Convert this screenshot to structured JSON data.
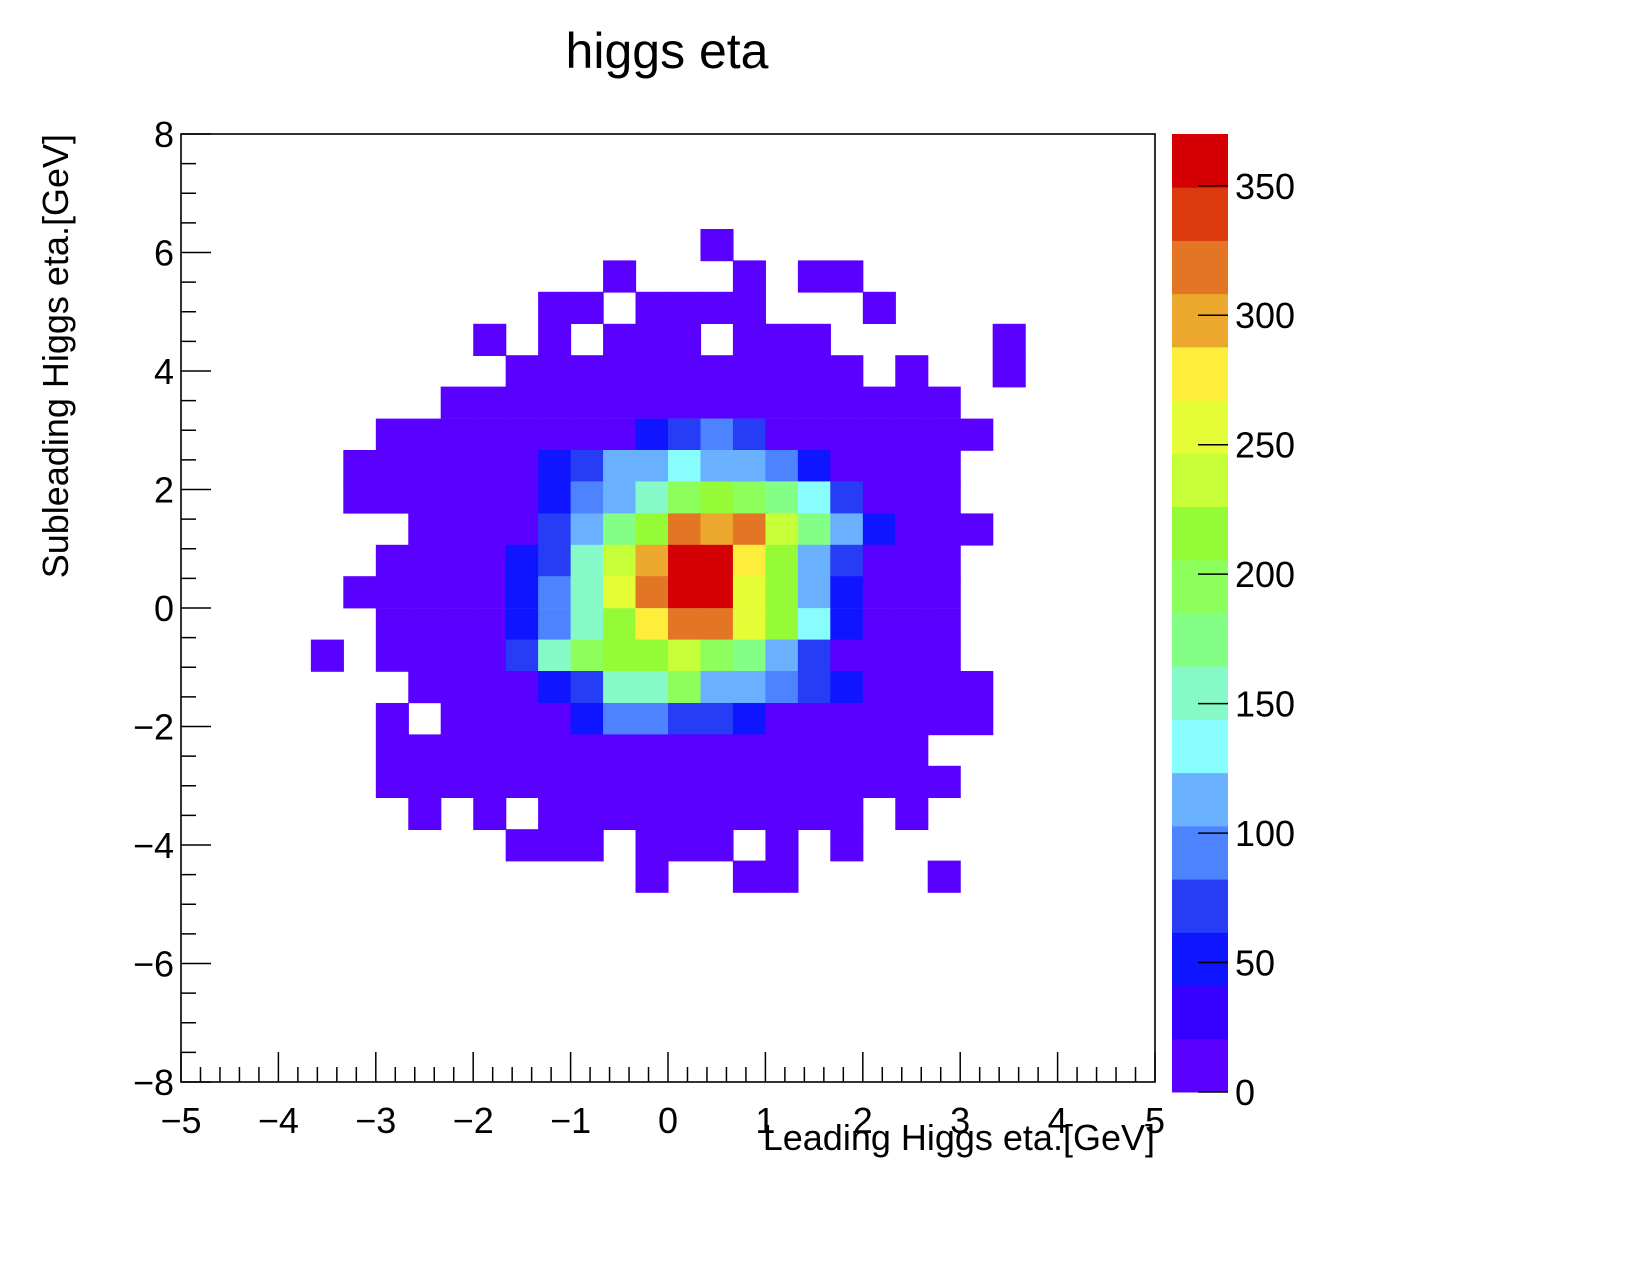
{
  "chart_data": {
    "type": "heatmap",
    "title": "higgs eta",
    "xlabel": "Leading Higgs eta.[GeV]",
    "ylabel": "Subleading Higgs eta.[GeV]",
    "xlim": [
      -5,
      5
    ],
    "ylim": [
      -8,
      8
    ],
    "x_ticks": [
      "−5",
      "−4",
      "−3",
      "−2",
      "−1",
      "0",
      "1",
      "2",
      "3",
      "4",
      "5"
    ],
    "y_ticks": [
      "−8",
      "−6",
      "−4",
      "−2",
      "0",
      "2",
      "4",
      "6",
      "8"
    ],
    "colorbar": {
      "range": [
        0,
        370
      ],
      "tick_values": [
        0,
        50,
        100,
        150,
        200,
        250,
        300,
        350
      ],
      "tick_labels": [
        "0",
        "50",
        "100",
        "150",
        "200",
        "250",
        "300",
        "350"
      ],
      "palette": [
        "#5a00ff",
        "#3500ff",
        "#0f16ff",
        "#263df5",
        "#4d83ff",
        "#69b0ff",
        "#88fdfe",
        "#85fac8",
        "#84ff85",
        "#8cff5c",
        "#95fb36",
        "#c6ff38",
        "#e5fd36",
        "#fdee3b",
        "#eca72d",
        "#e37625",
        "#dc3a0e",
        "#d50004"
      ]
    },
    "grid": false,
    "legend": "colorbar-right",
    "bins": {
      "x_edges_start": -5,
      "x_bin_width": 0.333333,
      "y_edges_start": -8,
      "y_bin_width": 0.533333,
      "note_cells": "[x_center, y_center, count]"
    },
    "cells": [
      [
        0.5,
        6.13,
        5
      ],
      [
        -0.5,
        5.6,
        5
      ],
      [
        0.833,
        5.6,
        5
      ],
      [
        1.5,
        5.6,
        5
      ],
      [
        1.833,
        5.6,
        5
      ],
      [
        -1.167,
        5.07,
        5
      ],
      [
        -0.833,
        5.07,
        5
      ],
      [
        -0.167,
        5.07,
        5
      ],
      [
        0.167,
        5.07,
        5
      ],
      [
        0.5,
        5.07,
        5
      ],
      [
        0.833,
        5.07,
        5
      ],
      [
        2.167,
        5.07,
        5
      ],
      [
        -1.833,
        4.53,
        5
      ],
      [
        -1.167,
        4.53,
        5
      ],
      [
        -0.5,
        4.53,
        5
      ],
      [
        -0.167,
        4.53,
        5
      ],
      [
        0.167,
        4.53,
        5
      ],
      [
        0.833,
        4.53,
        5
      ],
      [
        1.167,
        4.53,
        5
      ],
      [
        1.5,
        4.53,
        5
      ],
      [
        3.5,
        4.53,
        5
      ],
      [
        -1.5,
        4.0,
        5
      ],
      [
        -1.167,
        4.0,
        5
      ],
      [
        -0.833,
        4.0,
        5
      ],
      [
        -0.5,
        4.0,
        5
      ],
      [
        -0.167,
        4.0,
        5
      ],
      [
        0.167,
        4.0,
        5
      ],
      [
        0.5,
        4.0,
        5
      ],
      [
        0.833,
        4.0,
        5
      ],
      [
        1.167,
        4.0,
        5
      ],
      [
        1.5,
        4.0,
        5
      ],
      [
        1.833,
        4.0,
        5
      ],
      [
        2.5,
        4.0,
        5
      ],
      [
        3.5,
        4.0,
        5
      ],
      [
        -2.167,
        3.47,
        5
      ],
      [
        -1.833,
        3.47,
        5
      ],
      [
        -1.5,
        3.47,
        5
      ],
      [
        -1.167,
        3.47,
        20
      ],
      [
        -0.833,
        3.47,
        5
      ],
      [
        -0.5,
        3.47,
        20
      ],
      [
        -0.167,
        3.47,
        20
      ],
      [
        0.167,
        3.47,
        20
      ],
      [
        0.5,
        3.47,
        20
      ],
      [
        0.833,
        3.47,
        20
      ],
      [
        1.167,
        3.47,
        20
      ],
      [
        1.5,
        3.47,
        5
      ],
      [
        1.833,
        3.47,
        5
      ],
      [
        2.167,
        3.47,
        5
      ],
      [
        2.5,
        3.47,
        5
      ],
      [
        2.833,
        3.47,
        5
      ],
      [
        -2.833,
        2.93,
        5
      ],
      [
        -2.5,
        2.93,
        5
      ],
      [
        -2.167,
        2.93,
        5
      ],
      [
        -1.833,
        2.93,
        5
      ],
      [
        -1.5,
        2.93,
        5
      ],
      [
        -1.167,
        2.93,
        20
      ],
      [
        -0.833,
        2.93,
        20
      ],
      [
        -0.5,
        2.93,
        20
      ],
      [
        -0.167,
        2.93,
        45
      ],
      [
        0.167,
        2.93,
        70
      ],
      [
        0.5,
        2.93,
        90
      ],
      [
        0.833,
        2.93,
        70
      ],
      [
        1.167,
        2.93,
        20
      ],
      [
        1.5,
        2.93,
        20
      ],
      [
        1.833,
        2.93,
        20
      ],
      [
        2.167,
        2.93,
        5
      ],
      [
        2.5,
        2.93,
        5
      ],
      [
        2.833,
        2.93,
        5
      ],
      [
        3.167,
        2.93,
        5
      ],
      [
        -3.167,
        2.4,
        5
      ],
      [
        -2.833,
        2.4,
        5
      ],
      [
        -2.5,
        2.4,
        5
      ],
      [
        -2.167,
        2.4,
        5
      ],
      [
        -1.833,
        2.4,
        5
      ],
      [
        -1.5,
        2.4,
        20
      ],
      [
        -1.167,
        2.4,
        45
      ],
      [
        -0.833,
        2.4,
        70
      ],
      [
        -0.5,
        2.4,
        120
      ],
      [
        -0.167,
        2.4,
        120
      ],
      [
        0.167,
        2.4,
        140
      ],
      [
        0.5,
        2.4,
        120
      ],
      [
        0.833,
        2.4,
        110
      ],
      [
        1.167,
        2.4,
        90
      ],
      [
        1.5,
        2.4,
        45
      ],
      [
        1.833,
        2.4,
        20
      ],
      [
        2.167,
        2.4,
        5
      ],
      [
        2.5,
        2.4,
        5
      ],
      [
        2.833,
        2.4,
        5
      ],
      [
        -3.167,
        1.87,
        5
      ],
      [
        -2.833,
        1.87,
        5
      ],
      [
        -2.5,
        1.87,
        5
      ],
      [
        -2.167,
        1.87,
        5
      ],
      [
        -1.833,
        1.87,
        5
      ],
      [
        -1.5,
        1.87,
        20
      ],
      [
        -1.167,
        1.87,
        45
      ],
      [
        -0.833,
        1.87,
        90
      ],
      [
        -0.5,
        1.87,
        120
      ],
      [
        -0.167,
        1.87,
        160
      ],
      [
        0.167,
        1.87,
        200
      ],
      [
        0.5,
        1.87,
        210
      ],
      [
        0.833,
        1.87,
        200
      ],
      [
        1.167,
        1.87,
        170
      ],
      [
        1.5,
        1.87,
        140
      ],
      [
        1.833,
        1.87,
        70
      ],
      [
        2.167,
        1.87,
        20
      ],
      [
        2.5,
        1.87,
        20
      ],
      [
        2.833,
        1.87,
        5
      ],
      [
        -2.5,
        1.33,
        5
      ],
      [
        -2.167,
        1.33,
        5
      ],
      [
        -1.833,
        1.33,
        5
      ],
      [
        -1.5,
        1.33,
        20
      ],
      [
        -1.167,
        1.33,
        70
      ],
      [
        -0.833,
        1.33,
        120
      ],
      [
        -0.5,
        1.33,
        170
      ],
      [
        -0.167,
        1.33,
        210
      ],
      [
        0.167,
        1.33,
        310
      ],
      [
        0.5,
        1.33,
        300
      ],
      [
        0.833,
        1.33,
        310
      ],
      [
        1.167,
        1.33,
        240
      ],
      [
        1.5,
        1.33,
        170
      ],
      [
        1.833,
        1.33,
        110
      ],
      [
        2.167,
        1.33,
        45
      ],
      [
        2.5,
        1.33,
        5
      ],
      [
        2.833,
        1.33,
        5
      ],
      [
        3.167,
        1.33,
        5
      ],
      [
        -2.833,
        0.8,
        5
      ],
      [
        -2.5,
        0.8,
        5
      ],
      [
        -2.167,
        0.8,
        5
      ],
      [
        -1.833,
        0.8,
        5
      ],
      [
        -1.5,
        0.8,
        45
      ],
      [
        -1.167,
        0.8,
        70
      ],
      [
        -0.833,
        0.8,
        160
      ],
      [
        -0.5,
        0.8,
        240
      ],
      [
        -0.167,
        0.8,
        300
      ],
      [
        0.167,
        0.8,
        370
      ],
      [
        0.5,
        0.8,
        370
      ],
      [
        0.833,
        0.8,
        280
      ],
      [
        1.167,
        0.8,
        210
      ],
      [
        1.5,
        0.8,
        110
      ],
      [
        1.833,
        0.8,
        70
      ],
      [
        2.167,
        0.8,
        5
      ],
      [
        2.5,
        0.8,
        5
      ],
      [
        2.833,
        0.8,
        5
      ],
      [
        -3.167,
        0.27,
        5
      ],
      [
        -2.833,
        0.27,
        5
      ],
      [
        -2.5,
        0.27,
        5
      ],
      [
        -2.167,
        0.27,
        5
      ],
      [
        -1.833,
        0.27,
        5
      ],
      [
        -1.5,
        0.27,
        45
      ],
      [
        -1.167,
        0.27,
        90
      ],
      [
        -0.833,
        0.27,
        160
      ],
      [
        -0.5,
        0.27,
        260
      ],
      [
        -0.167,
        0.27,
        320
      ],
      [
        0.167,
        0.27,
        370
      ],
      [
        0.5,
        0.27,
        350
      ],
      [
        0.833,
        0.27,
        260
      ],
      [
        1.167,
        0.27,
        210
      ],
      [
        1.5,
        0.27,
        120
      ],
      [
        1.833,
        0.27,
        45
      ],
      [
        2.167,
        0.27,
        5
      ],
      [
        2.5,
        0.27,
        5
      ],
      [
        2.833,
        0.27,
        5
      ],
      [
        -2.833,
        -0.27,
        5
      ],
      [
        -2.5,
        -0.27,
        5
      ],
      [
        -2.167,
        -0.27,
        5
      ],
      [
        -1.833,
        -0.27,
        5
      ],
      [
        -1.5,
        -0.27,
        45
      ],
      [
        -1.167,
        -0.27,
        90
      ],
      [
        -0.833,
        -0.27,
        160
      ],
      [
        -0.5,
        -0.27,
        210
      ],
      [
        -0.167,
        -0.27,
        280
      ],
      [
        0.167,
        -0.27,
        310
      ],
      [
        0.5,
        -0.27,
        310
      ],
      [
        0.833,
        -0.27,
        260
      ],
      [
        1.167,
        -0.27,
        210
      ],
      [
        1.5,
        -0.27,
        140
      ],
      [
        1.833,
        -0.27,
        45
      ],
      [
        2.167,
        -0.27,
        20
      ],
      [
        2.5,
        -0.27,
        5
      ],
      [
        2.833,
        -0.27,
        5
      ],
      [
        -3.5,
        -0.8,
        5
      ],
      [
        -2.833,
        -0.8,
        5
      ],
      [
        -2.5,
        -0.8,
        5
      ],
      [
        -2.167,
        -0.8,
        5
      ],
      [
        -1.833,
        -0.8,
        5
      ],
      [
        -1.5,
        -0.8,
        70
      ],
      [
        -1.167,
        -0.8,
        150
      ],
      [
        -0.833,
        -0.8,
        200
      ],
      [
        -0.5,
        -0.8,
        210
      ],
      [
        -0.167,
        -0.8,
        220
      ],
      [
        0.167,
        -0.8,
        230
      ],
      [
        0.5,
        -0.8,
        200
      ],
      [
        0.833,
        -0.8,
        170
      ],
      [
        1.167,
        -0.8,
        120
      ],
      [
        1.5,
        -0.8,
        70
      ],
      [
        1.833,
        -0.8,
        20
      ],
      [
        2.167,
        -0.8,
        20
      ],
      [
        2.5,
        -0.8,
        5
      ],
      [
        2.833,
        -0.8,
        5
      ],
      [
        -2.5,
        -1.33,
        5
      ],
      [
        -2.167,
        -1.33,
        5
      ],
      [
        -1.833,
        -1.33,
        5
      ],
      [
        -1.5,
        -1.33,
        20
      ],
      [
        -1.167,
        -1.33,
        45
      ],
      [
        -0.833,
        -1.33,
        70
      ],
      [
        -0.5,
        -1.33,
        150
      ],
      [
        -0.167,
        -1.33,
        160
      ],
      [
        0.167,
        -1.33,
        190
      ],
      [
        0.5,
        -1.33,
        120
      ],
      [
        0.833,
        -1.33,
        120
      ],
      [
        1.167,
        -1.33,
        90
      ],
      [
        1.5,
        -1.33,
        70
      ],
      [
        1.833,
        -1.33,
        45
      ],
      [
        2.167,
        -1.33,
        20
      ],
      [
        2.5,
        -1.33,
        5
      ],
      [
        2.833,
        -1.33,
        5
      ],
      [
        3.167,
        -1.33,
        5
      ],
      [
        -2.833,
        -1.87,
        5
      ],
      [
        -2.167,
        -1.87,
        5
      ],
      [
        -1.833,
        -1.87,
        5
      ],
      [
        -1.5,
        -1.87,
        5
      ],
      [
        -1.167,
        -1.87,
        20
      ],
      [
        -0.833,
        -1.87,
        45
      ],
      [
        -0.5,
        -1.87,
        90
      ],
      [
        -0.167,
        -1.87,
        90
      ],
      [
        0.167,
        -1.87,
        70
      ],
      [
        0.5,
        -1.87,
        70
      ],
      [
        0.833,
        -1.87,
        45
      ],
      [
        1.167,
        -1.87,
        20
      ],
      [
        1.5,
        -1.87,
        20
      ],
      [
        1.833,
        -1.87,
        5
      ],
      [
        2.167,
        -1.87,
        5
      ],
      [
        2.5,
        -1.87,
        5
      ],
      [
        2.833,
        -1.87,
        5
      ],
      [
        3.167,
        -1.87,
        5
      ],
      [
        -2.833,
        -2.4,
        5
      ],
      [
        -2.5,
        -2.4,
        5
      ],
      [
        -2.167,
        -2.4,
        5
      ],
      [
        -1.833,
        -2.4,
        5
      ],
      [
        -1.5,
        -2.4,
        20
      ],
      [
        -1.167,
        -2.4,
        5
      ],
      [
        -0.833,
        -2.4,
        20
      ],
      [
        -0.5,
        -2.4,
        20
      ],
      [
        -0.167,
        -2.4,
        20
      ],
      [
        0.167,
        -2.4,
        20
      ],
      [
        0.5,
        -2.4,
        20
      ],
      [
        0.833,
        -2.4,
        20
      ],
      [
        1.167,
        -2.4,
        5
      ],
      [
        1.5,
        -2.4,
        5
      ],
      [
        1.833,
        -2.4,
        5
      ],
      [
        2.167,
        -2.4,
        5
      ],
      [
        2.5,
        -2.4,
        5
      ],
      [
        -2.833,
        -2.93,
        5
      ],
      [
        -2.5,
        -2.93,
        5
      ],
      [
        -2.167,
        -2.93,
        5
      ],
      [
        -1.833,
        -2.93,
        5
      ],
      [
        -1.5,
        -2.93,
        5
      ],
      [
        -1.167,
        -2.93,
        5
      ],
      [
        -0.833,
        -2.93,
        5
      ],
      [
        -0.5,
        -2.93,
        5
      ],
      [
        -0.167,
        -2.93,
        5
      ],
      [
        0.167,
        -2.93,
        5
      ],
      [
        0.5,
        -2.93,
        5
      ],
      [
        0.833,
        -2.93,
        5
      ],
      [
        1.167,
        -2.93,
        5
      ],
      [
        1.5,
        -2.93,
        5
      ],
      [
        1.833,
        -2.93,
        5
      ],
      [
        2.167,
        -2.93,
        5
      ],
      [
        2.5,
        -2.93,
        5
      ],
      [
        2.833,
        -2.93,
        5
      ],
      [
        -2.5,
        -3.47,
        5
      ],
      [
        -1.833,
        -3.47,
        5
      ],
      [
        -1.167,
        -3.47,
        5
      ],
      [
        -0.833,
        -3.47,
        5
      ],
      [
        -0.5,
        -3.47,
        5
      ],
      [
        -0.167,
        -3.47,
        5
      ],
      [
        0.167,
        -3.47,
        5
      ],
      [
        0.5,
        -3.47,
        5
      ],
      [
        0.833,
        -3.47,
        5
      ],
      [
        1.167,
        -3.47,
        5
      ],
      [
        1.5,
        -3.47,
        5
      ],
      [
        1.833,
        -3.47,
        5
      ],
      [
        2.5,
        -3.47,
        5
      ],
      [
        -1.5,
        -4.0,
        5
      ],
      [
        -1.167,
        -4.0,
        5
      ],
      [
        -0.833,
        -4.0,
        5
      ],
      [
        -0.167,
        -4.0,
        5
      ],
      [
        0.167,
        -4.0,
        5
      ],
      [
        0.5,
        -4.0,
        5
      ],
      [
        1.167,
        -4.0,
        5
      ],
      [
        1.833,
        -4.0,
        5
      ],
      [
        -0.167,
        -4.53,
        5
      ],
      [
        0.833,
        -4.53,
        5
      ],
      [
        1.167,
        -4.53,
        5
      ],
      [
        2.833,
        -4.53,
        5
      ]
    ]
  }
}
